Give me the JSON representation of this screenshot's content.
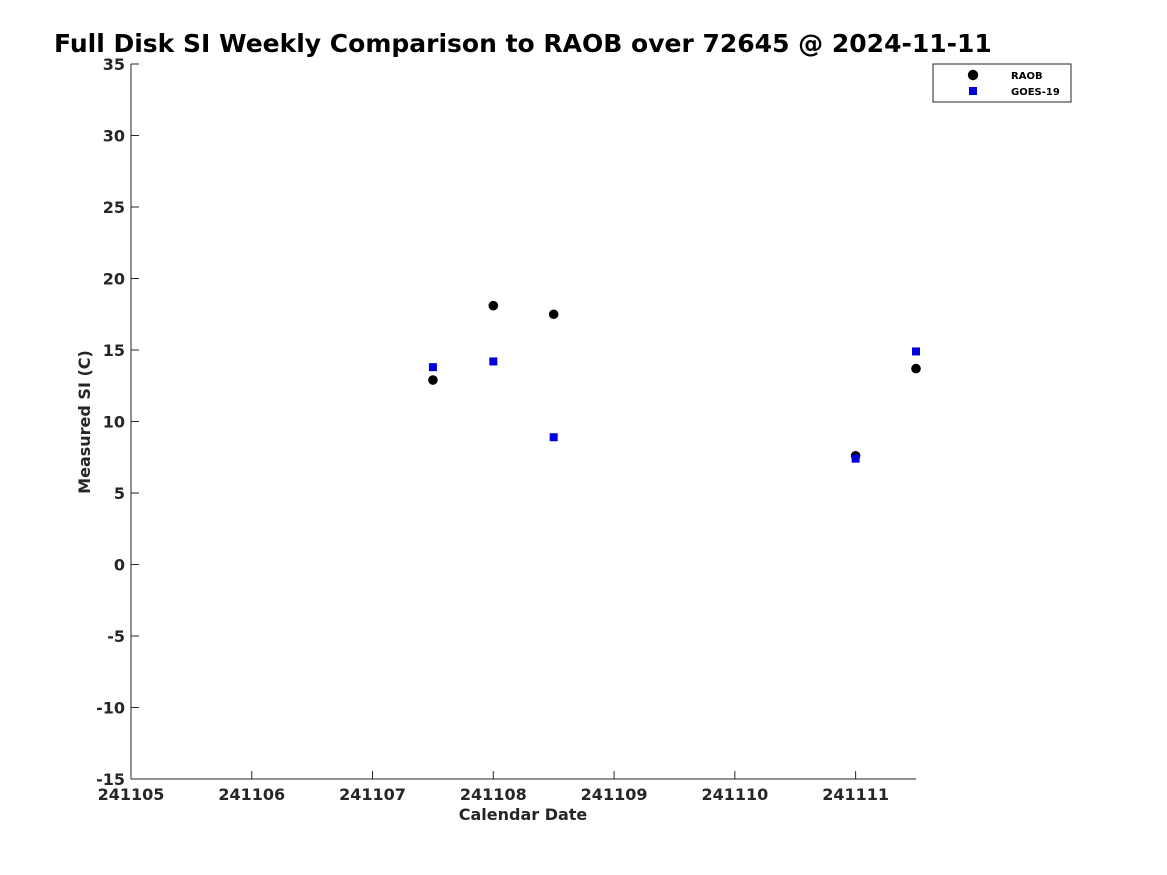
{
  "chart_data": {
    "type": "scatter",
    "title": "Full Disk SI Weekly Comparison to RAOB over 72645 @ 2024-11-11",
    "xlabel": "Calendar Date",
    "ylabel": "Measured SI (C)",
    "xlim": [
      "2024-11-05",
      "2024-11-11T12:00"
    ],
    "ylim": [
      -15,
      35
    ],
    "x_ticks": [
      {
        "date": "2024-11-05",
        "label": "241105"
      },
      {
        "date": "2024-11-06",
        "label": "241106"
      },
      {
        "date": "2024-11-07",
        "label": "241107"
      },
      {
        "date": "2024-11-08",
        "label": "241108"
      },
      {
        "date": "2024-11-09",
        "label": "241109"
      },
      {
        "date": "2024-11-10",
        "label": "241110"
      },
      {
        "date": "2024-11-11",
        "label": "241111"
      }
    ],
    "y_ticks": [
      -15,
      -10,
      -5,
      0,
      5,
      10,
      15,
      20,
      25,
      30,
      35
    ],
    "y_tick_labels": [
      "-15",
      "-10",
      "-5",
      "0",
      "5",
      "10",
      "15",
      "20",
      "25",
      "30",
      "35"
    ],
    "grid": false,
    "legend_position": "top-right",
    "series": [
      {
        "name": "RAOB",
        "marker": "circle",
        "color": "#000000",
        "points": [
          {
            "x": "2024-11-07T12:00",
            "y": 12.9
          },
          {
            "x": "2024-11-08T00:00",
            "y": 18.1
          },
          {
            "x": "2024-11-08T12:00",
            "y": 17.5
          },
          {
            "x": "2024-11-11T00:00",
            "y": 7.6
          },
          {
            "x": "2024-11-11T12:00",
            "y": 13.7
          }
        ]
      },
      {
        "name": "GOES-19",
        "marker": "square",
        "color": "#0000dd",
        "points": [
          {
            "x": "2024-11-07T12:00",
            "y": 13.8
          },
          {
            "x": "2024-11-08T00:00",
            "y": 14.2
          },
          {
            "x": "2024-11-08T12:00",
            "y": 8.9
          },
          {
            "x": "2024-11-11T00:00",
            "y": 7.4
          },
          {
            "x": "2024-11-11T12:00",
            "y": 14.9
          }
        ]
      }
    ]
  }
}
